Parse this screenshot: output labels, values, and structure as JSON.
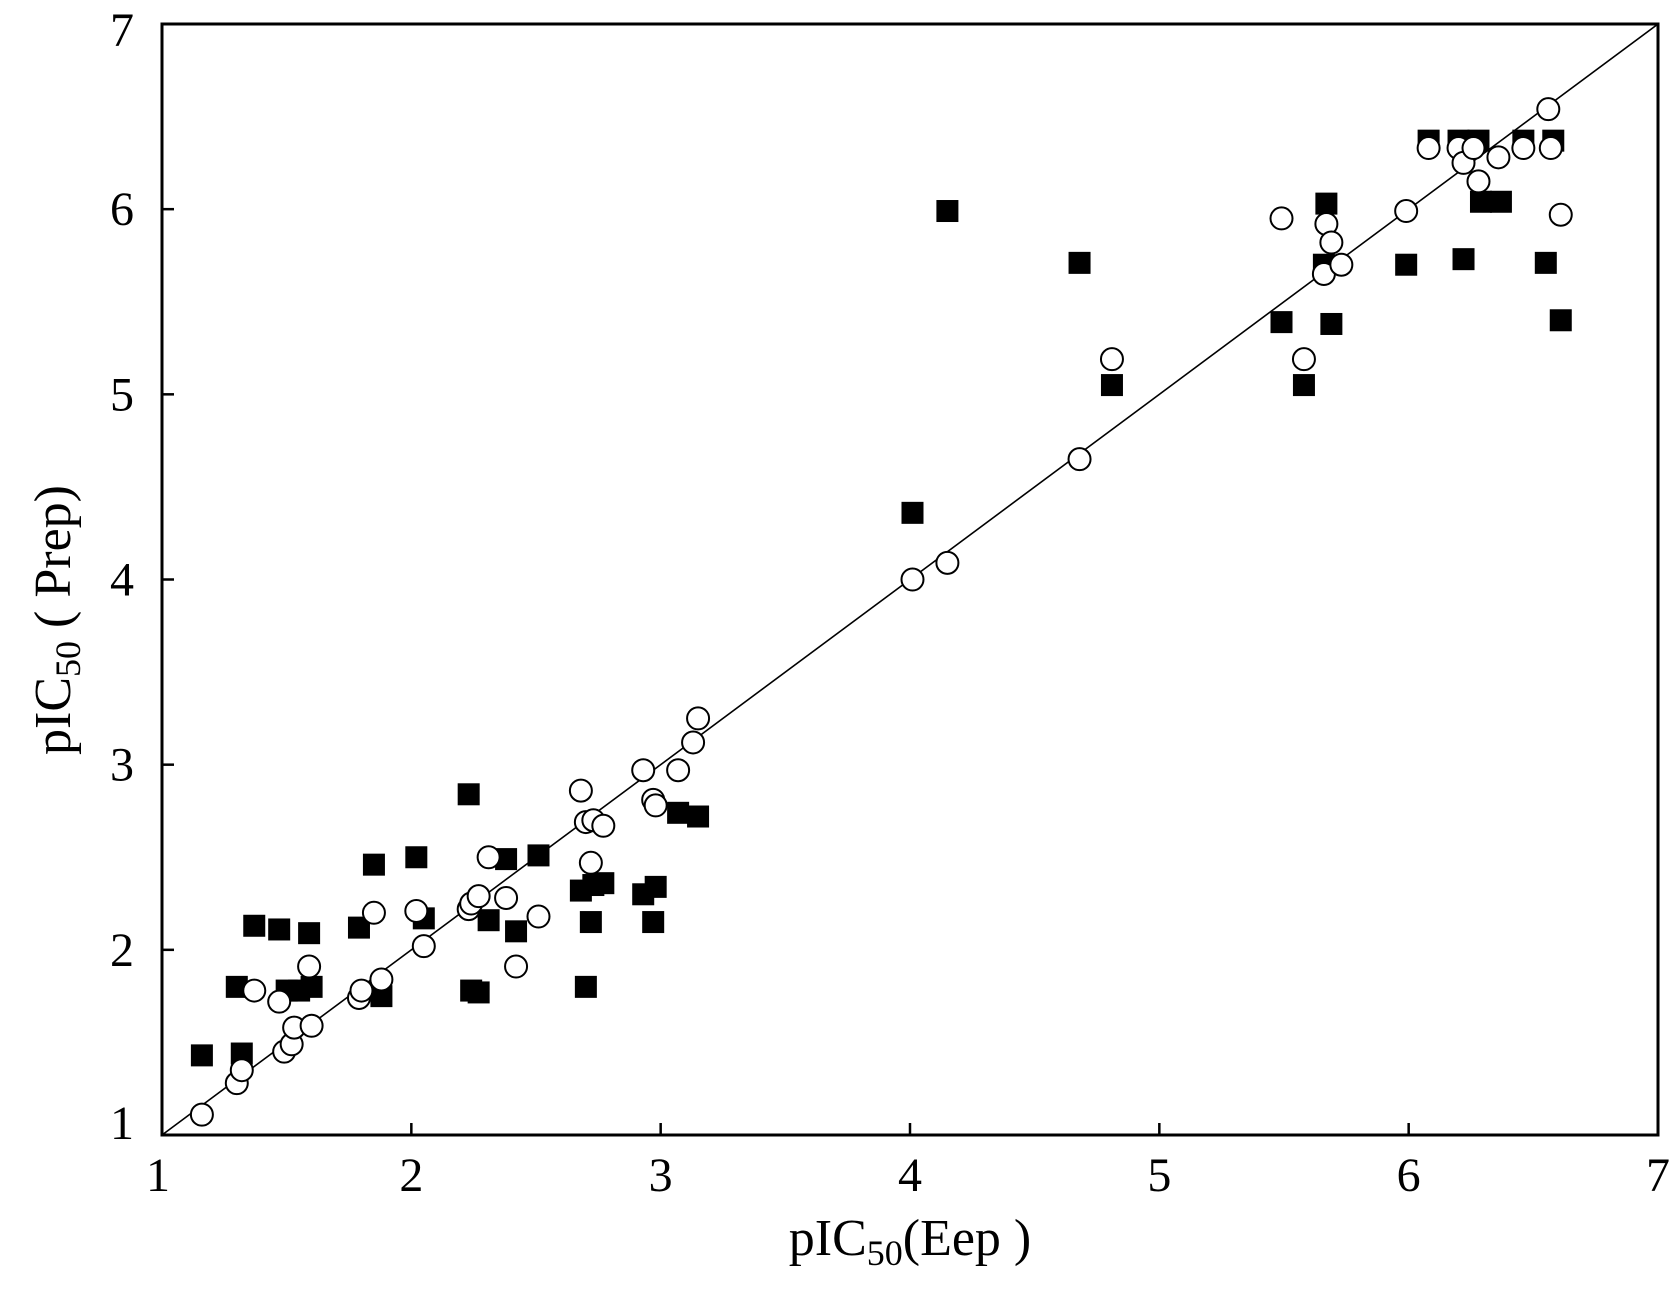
{
  "chart_data": {
    "type": "scatter",
    "xlabel": {
      "prefix": "pIC",
      "subscript": "50",
      "suffix": "(Eep )"
    },
    "ylabel": {
      "prefix": "pIC",
      "subscript": "50",
      "suffix": " ( Prep)"
    },
    "xlim": [
      1,
      7
    ],
    "ylim": [
      1,
      7
    ],
    "xticks": [
      1,
      2,
      3,
      4,
      5,
      6,
      7
    ],
    "yticks": [
      1,
      2,
      3,
      4,
      5,
      6,
      7
    ],
    "grid": false,
    "reference_line": {
      "from": [
        1,
        1
      ],
      "to": [
        7,
        7
      ]
    },
    "series": [
      {
        "name": "filled squares",
        "marker": "square-filled",
        "color": "#000000",
        "points": [
          [
            1.16,
            1.43
          ],
          [
            1.3,
            1.8
          ],
          [
            1.32,
            1.44
          ],
          [
            1.37,
            2.13
          ],
          [
            1.47,
            2.11
          ],
          [
            1.5,
            1.78
          ],
          [
            1.55,
            1.78
          ],
          [
            1.59,
            2.09
          ],
          [
            1.6,
            1.8
          ],
          [
            1.79,
            2.12
          ],
          [
            1.85,
            2.46
          ],
          [
            1.88,
            1.75
          ],
          [
            2.02,
            2.5
          ],
          [
            2.05,
            2.17
          ],
          [
            2.23,
            2.84
          ],
          [
            2.24,
            1.78
          ],
          [
            2.27,
            1.77
          ],
          [
            2.31,
            2.16
          ],
          [
            2.38,
            2.49
          ],
          [
            2.42,
            2.1
          ],
          [
            2.51,
            2.51
          ],
          [
            2.68,
            2.32
          ],
          [
            2.7,
            1.8
          ],
          [
            2.72,
            2.15
          ],
          [
            2.73,
            2.35
          ],
          [
            2.77,
            2.36
          ],
          [
            2.93,
            2.3
          ],
          [
            2.97,
            2.15
          ],
          [
            2.98,
            2.34
          ],
          [
            3.07,
            2.74
          ],
          [
            3.15,
            2.72
          ],
          [
            4.01,
            4.36
          ],
          [
            4.15,
            5.99
          ],
          [
            4.68,
            5.71
          ],
          [
            4.81,
            5.05
          ],
          [
            5.49,
            5.39
          ],
          [
            5.58,
            5.05
          ],
          [
            5.66,
            5.7
          ],
          [
            5.67,
            6.03
          ],
          [
            5.69,
            5.38
          ],
          [
            5.99,
            5.7
          ],
          [
            6.08,
            6.37
          ],
          [
            6.2,
            6.37
          ],
          [
            6.22,
            5.73
          ],
          [
            6.28,
            6.37
          ],
          [
            6.29,
            6.04
          ],
          [
            6.37,
            6.04
          ],
          [
            6.46,
            6.37
          ],
          [
            6.55,
            5.71
          ],
          [
            6.58,
            6.37
          ],
          [
            6.61,
            5.4
          ]
        ]
      },
      {
        "name": "open circles",
        "marker": "circle-open",
        "color": "#000000",
        "points": [
          [
            1.16,
            1.11
          ],
          [
            1.3,
            1.28
          ],
          [
            1.32,
            1.35
          ],
          [
            1.37,
            1.78
          ],
          [
            1.47,
            1.72
          ],
          [
            1.49,
            1.45
          ],
          [
            1.52,
            1.49
          ],
          [
            1.53,
            1.58
          ],
          [
            1.59,
            1.91
          ],
          [
            1.6,
            1.59
          ],
          [
            1.79,
            1.74
          ],
          [
            1.8,
            1.78
          ],
          [
            1.85,
            2.2
          ],
          [
            1.88,
            1.84
          ],
          [
            2.02,
            2.21
          ],
          [
            2.05,
            2.02
          ],
          [
            2.23,
            2.22
          ],
          [
            2.24,
            2.25
          ],
          [
            2.27,
            2.29
          ],
          [
            2.31,
            2.5
          ],
          [
            2.38,
            2.28
          ],
          [
            2.42,
            1.91
          ],
          [
            2.51,
            2.18
          ],
          [
            2.68,
            2.86
          ],
          [
            2.7,
            2.69
          ],
          [
            2.72,
            2.47
          ],
          [
            2.73,
            2.7
          ],
          [
            2.77,
            2.67
          ],
          [
            2.93,
            2.97
          ],
          [
            2.97,
            2.81
          ],
          [
            2.98,
            2.78
          ],
          [
            3.07,
            2.97
          ],
          [
            3.13,
            3.12
          ],
          [
            3.15,
            3.25
          ],
          [
            4.01,
            4.0
          ],
          [
            4.15,
            4.09
          ],
          [
            4.68,
            4.65
          ],
          [
            4.81,
            5.19
          ],
          [
            5.49,
            5.95
          ],
          [
            5.58,
            5.19
          ],
          [
            5.66,
            5.65
          ],
          [
            5.67,
            5.92
          ],
          [
            5.69,
            5.82
          ],
          [
            5.73,
            5.7
          ],
          [
            5.99,
            5.99
          ],
          [
            6.08,
            6.33
          ],
          [
            6.2,
            6.33
          ],
          [
            6.22,
            6.25
          ],
          [
            6.26,
            6.33
          ],
          [
            6.28,
            6.15
          ],
          [
            6.36,
            6.28
          ],
          [
            6.46,
            6.33
          ],
          [
            6.56,
            6.54
          ],
          [
            6.57,
            6.33
          ],
          [
            6.61,
            5.97
          ]
        ]
      }
    ]
  }
}
